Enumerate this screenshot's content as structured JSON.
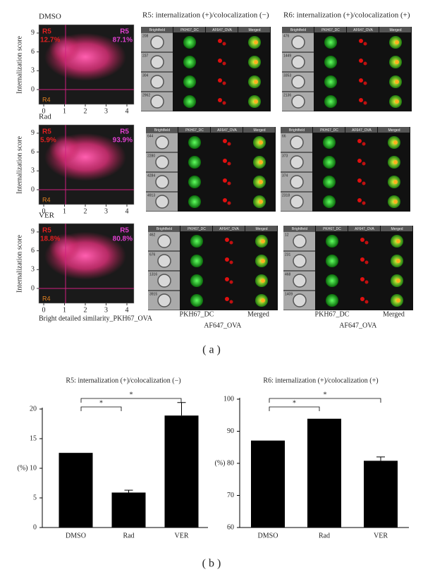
{
  "panel_a": {
    "label": "( a )",
    "y_axis_label": "Internalization score",
    "x_axis_label": "Bright detailed similarity_PKH67_OVA",
    "xticks": [
      0,
      1,
      2,
      3,
      4
    ],
    "yticks": [
      0,
      3,
      6,
      9
    ],
    "plots": [
      {
        "name": "DMSO",
        "gates": [
          {
            "name": "R5",
            "percent": "12.7%"
          },
          {
            "name": "R5",
            "percent": "87.1%"
          },
          {
            "name": "R4"
          }
        ]
      },
      {
        "name": "Rad",
        "gates": [
          {
            "name": "R5",
            "percent": "5.9%"
          },
          {
            "name": "R5",
            "percent": "93.9%"
          },
          {
            "name": "R4"
          }
        ]
      },
      {
        "name": "VER",
        "gates": [
          {
            "name": "R5",
            "percent": "18.8%"
          },
          {
            "name": "R5",
            "percent": "80.8%"
          },
          {
            "name": "R4"
          }
        ]
      }
    ],
    "gallery_titles": [
      "R5: internalization (+)/colocalization (−)",
      "R6: internalization (+)/colocalization (+)"
    ],
    "gallery_columns": [
      "Brightfield",
      "PKH67_DC",
      "AF647_OVA",
      "Merged"
    ],
    "galleries": [
      [
        [
          "208",
          "237",
          "304",
          "2962"
        ],
        [
          "476",
          "1449",
          "3353",
          "2136"
        ]
      ],
      [
        [
          "644",
          "2280",
          "4284",
          "4913"
        ],
        [
          "66",
          "373",
          "374",
          "2318"
        ]
      ],
      [
        [
          "462",
          "676",
          "1316",
          "3915"
        ],
        [
          "12",
          "231",
          "468",
          "1409"
        ]
      ]
    ],
    "captions": [
      "PKH67_DC",
      "Merged",
      "AF647_OVA"
    ]
  },
  "panel_b_label": "( b )",
  "chart_data": [
    {
      "type": "bar",
      "title": "R5: internalization (+)/colocalization (−)",
      "y_label": "(%)",
      "categories": [
        "DMSO",
        "Rad",
        "VER"
      ],
      "values": [
        12.6,
        5.9,
        18.9
      ],
      "errors": [
        null,
        0.4,
        2.2
      ],
      "color": "#000000",
      "ylim": [
        0,
        20
      ],
      "yticks": [
        0,
        5,
        10,
        15,
        20
      ],
      "significance": [
        "*",
        "*"
      ]
    },
    {
      "type": "bar",
      "title": "R6: internalization (+)/colocalization (+)",
      "y_label": "(%)",
      "categories": [
        "DMSO",
        "Rad",
        "VER"
      ],
      "values": [
        87.1,
        93.9,
        80.8
      ],
      "errors": [
        null,
        null,
        1.2
      ],
      "color": "#000000",
      "ylim": [
        60,
        100
      ],
      "yticks": [
        60,
        70,
        80,
        90,
        100
      ],
      "significance": [
        "*",
        "*"
      ]
    }
  ]
}
